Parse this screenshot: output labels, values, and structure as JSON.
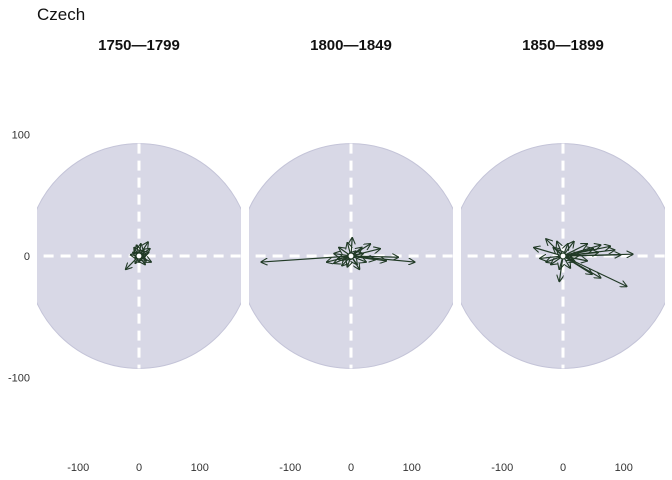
{
  "title": "Czech",
  "colors": {
    "disc": "#d8d8e6",
    "arrow": "#213a26",
    "axis": "#ffffff"
  },
  "chart_data": {
    "type": "vector",
    "xlim": [
      -170,
      170
    ],
    "ylim": [
      -170,
      170
    ],
    "radius": 185,
    "xticks": [
      -100,
      0,
      100
    ],
    "yticks": [
      100,
      0,
      -100
    ],
    "panels": [
      {
        "title": "1750—1799",
        "vectors": [
          [
            15,
            23
          ],
          [
            18,
            12
          ],
          [
            -8,
            14
          ],
          [
            -10,
            6
          ],
          [
            -6,
            -4
          ],
          [
            -22,
            -22
          ],
          [
            -6,
            -12
          ],
          [
            12,
            -8
          ],
          [
            20,
            -10
          ],
          [
            16,
            6
          ],
          [
            8,
            10
          ],
          [
            3,
            20
          ],
          [
            -4,
            18
          ],
          [
            -14,
            2
          ],
          [
            10,
            -14
          ],
          [
            6,
            0
          ],
          [
            0,
            -10
          ],
          [
            -4,
            6
          ],
          [
            12,
            2
          ],
          [
            8,
            -4
          ]
        ]
      },
      {
        "title": "1800—1849",
        "vectors": [
          [
            -148,
            -10
          ],
          [
            105,
            -10
          ],
          [
            78,
            -2
          ],
          [
            48,
            12
          ],
          [
            32,
            20
          ],
          [
            2,
            30
          ],
          [
            -20,
            14
          ],
          [
            -28,
            4
          ],
          [
            -40,
            -10
          ],
          [
            -28,
            -12
          ],
          [
            -15,
            -16
          ],
          [
            -6,
            -18
          ],
          [
            10,
            -14
          ],
          [
            25,
            -10
          ],
          [
            40,
            -6
          ],
          [
            58,
            -8
          ],
          [
            -6,
            22
          ],
          [
            18,
            14
          ],
          [
            -10,
            -6
          ],
          [
            8,
            8
          ],
          [
            -22,
            -5
          ],
          [
            14,
            -22
          ],
          [
            20,
            4
          ]
        ]
      },
      {
        "title": "1850—1899",
        "vectors": [
          [
            105,
            -50
          ],
          [
            115,
            3
          ],
          [
            95,
            2
          ],
          [
            85,
            10
          ],
          [
            78,
            16
          ],
          [
            62,
            18
          ],
          [
            50,
            12
          ],
          [
            40,
            20
          ],
          [
            -28,
            28
          ],
          [
            -48,
            14
          ],
          [
            -10,
            24
          ],
          [
            18,
            24
          ],
          [
            8,
            20
          ],
          [
            -6,
            -42
          ],
          [
            -20,
            -14
          ],
          [
            -28,
            -10
          ],
          [
            -6,
            -22
          ],
          [
            20,
            -10
          ],
          [
            48,
            -30
          ],
          [
            62,
            -36
          ],
          [
            -16,
            14
          ],
          [
            16,
            -6
          ],
          [
            -38,
            -4
          ],
          [
            28,
            2
          ],
          [
            58,
            6
          ],
          [
            40,
            -8
          ],
          [
            12,
            -20
          ],
          [
            -10,
            10
          ]
        ]
      }
    ]
  }
}
